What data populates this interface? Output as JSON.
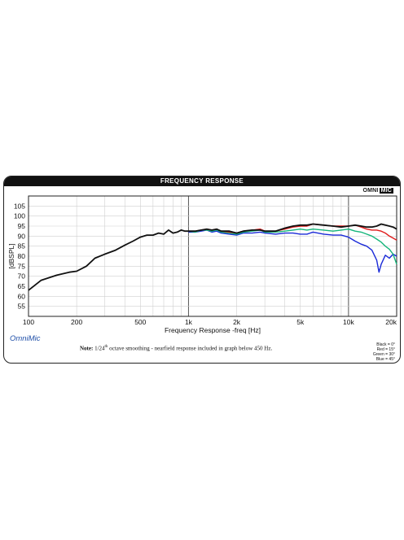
{
  "chart_data": {
    "type": "line",
    "title": "FREQUENCY RESPONSE",
    "brand": "OMNIMIC",
    "xlabel": "Frequency Response -freq [Hz]",
    "ylabel": "[dBSPL]",
    "xscale": "log",
    "xlim": [
      100,
      20000
    ],
    "ylim": [
      50,
      110
    ],
    "grid": true,
    "x_ticks": [
      100,
      200,
      500,
      1000,
      2000,
      5000,
      10000,
      20000
    ],
    "x_tick_labels": [
      "100",
      "200",
      "500",
      "1k",
      "2k",
      "5k",
      "10k",
      "20k"
    ],
    "y_ticks": [
      55,
      60,
      65,
      70,
      75,
      80,
      85,
      90,
      95,
      100,
      105
    ],
    "series": [
      {
        "name": "Black = 0°",
        "color": "#111111",
        "x": [
          100,
          120,
          150,
          180,
          200,
          230,
          260,
          300,
          350,
          400,
          450,
          500,
          550,
          600,
          650,
          700,
          750,
          800,
          850,
          900,
          950,
          1000,
          1100,
          1200,
          1300,
          1400,
          1500,
          1600,
          1800,
          2000,
          2200,
          2500,
          2800,
          3000,
          3500,
          4000,
          4500,
          5000,
          5500,
          6000,
          7000,
          8000,
          9000,
          10000,
          11000,
          12000,
          13000,
          14000,
          15000,
          16000,
          17000,
          18000,
          19000,
          20000
        ],
        "y": [
          63,
          68,
          70.5,
          72,
          72.5,
          75,
          79,
          81,
          83,
          85.5,
          87.5,
          89.5,
          90.5,
          90.5,
          91.5,
          91,
          93,
          91.5,
          92,
          93,
          92.5,
          92.5,
          92.5,
          93,
          93.5,
          93,
          93.5,
          92.5,
          92.5,
          91.5,
          92.5,
          93,
          93,
          92.5,
          92.5,
          94,
          95,
          95.5,
          95.5,
          96,
          95.5,
          95,
          94.5,
          95,
          95.5,
          95,
          94.5,
          94.5,
          95,
          96,
          95.5,
          95,
          94.5,
          93.5
        ]
      },
      {
        "name": "Red = 15°",
        "color": "#e01a1a",
        "x": [
          1000,
          1100,
          1200,
          1300,
          1400,
          1500,
          1600,
          1800,
          2000,
          2200,
          2500,
          2800,
          3000,
          3500,
          4000,
          4500,
          5000,
          5500,
          6000,
          7000,
          8000,
          9000,
          10000,
          11000,
          12000,
          13000,
          14000,
          15000,
          16000,
          17000,
          18000,
          19000,
          20000
        ],
        "y": [
          92.5,
          92.5,
          93,
          93.5,
          93,
          93.5,
          92.5,
          92,
          91.5,
          92.5,
          93,
          93.5,
          92.5,
          92.5,
          93.5,
          94.5,
          95,
          95,
          96,
          95.5,
          95,
          95,
          95,
          95.5,
          94.5,
          93.5,
          93,
          93,
          92.5,
          91.5,
          90,
          89,
          88
        ]
      },
      {
        "name": "Green = 30°",
        "color": "#15b57a",
        "x": [
          1000,
          1100,
          1200,
          1300,
          1400,
          1500,
          1600,
          1800,
          2000,
          2200,
          2500,
          2800,
          3000,
          3500,
          4000,
          4500,
          5000,
          5500,
          6000,
          7000,
          8000,
          9000,
          10000,
          11000,
          12000,
          13000,
          14000,
          15000,
          16000,
          17000,
          18000,
          19000,
          20000
        ],
        "y": [
          92.5,
          92,
          93,
          93,
          92.5,
          93,
          92,
          91.5,
          91,
          92,
          92.5,
          93,
          92,
          92,
          92.5,
          93,
          93.5,
          93,
          93.5,
          93,
          92.5,
          93,
          93.5,
          92.5,
          92,
          91,
          90,
          88.5,
          87,
          85,
          83.5,
          81,
          76
        ]
      },
      {
        "name": "Blue = 45°",
        "color": "#1a2ad8",
        "x": [
          1000,
          1100,
          1200,
          1300,
          1400,
          1500,
          1600,
          1800,
          2000,
          2200,
          2500,
          2800,
          3000,
          3500,
          4000,
          4500,
          5000,
          5500,
          6000,
          7000,
          8000,
          9000,
          10000,
          11000,
          12000,
          13000,
          14000,
          15000,
          15500,
          16000,
          17000,
          18000,
          19000,
          20000
        ],
        "y": [
          92,
          92,
          92.5,
          93,
          92,
          92.5,
          91.5,
          91,
          90.5,
          91.5,
          91.5,
          92,
          91.5,
          91,
          91.5,
          91.5,
          91,
          91,
          92,
          91,
          90.5,
          90.5,
          89.5,
          87.5,
          86,
          85,
          83,
          78,
          72,
          76,
          80.5,
          79,
          81,
          80
        ]
      }
    ]
  },
  "logo": {
    "omni": "OMNI",
    "mic": "MIC"
  },
  "brand_name": "OmniMic",
  "note": {
    "label": "Note:",
    "pre": " 1/24",
    "sup": "th",
    "post": " octave smoothing - nearfield response included in graph below 450 Hz."
  },
  "legend": [
    "Black = 0°",
    "Red = 15°",
    "Green = 30°",
    "Blue = 45°"
  ]
}
